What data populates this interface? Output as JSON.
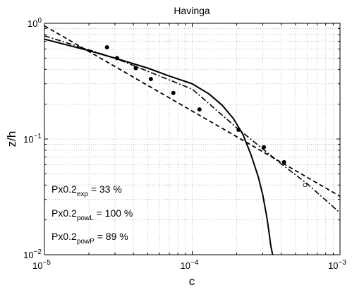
{
  "chart_data": {
    "type": "line",
    "title": "Havinga",
    "xlabel": "c",
    "ylabel": "z/h",
    "xscale": "log",
    "yscale": "log",
    "xlim": [
      1e-05,
      0.001
    ],
    "ylim": [
      0.01,
      1
    ],
    "grid": true,
    "x_ticks": [
      {
        "base": "10",
        "exp": "−5"
      },
      {
        "base": "10",
        "exp": "−4"
      },
      {
        "base": "10",
        "exp": "−3"
      }
    ],
    "y_ticks": [
      {
        "base": "10",
        "exp": "−2"
      },
      {
        "base": "10",
        "exp": "−1"
      },
      {
        "base": "10",
        "exp": "0"
      }
    ],
    "series": [
      {
        "style": "markers-filled",
        "x": [
          2.65e-05,
          3.1e-05,
          4.15e-05,
          5.25e-05,
          7.45e-05,
          0.000112,
          0.000206,
          0.000305,
          0.000418
        ],
        "y": [
          0.62,
          0.5,
          0.41,
          0.33,
          0.25,
          0.18,
          0.12,
          0.085,
          0.063
        ]
      },
      {
        "style": "marker-open",
        "x": [
          0.00058
        ],
        "y": [
          0.04
        ]
      },
      {
        "style": "solid",
        "x": [
          1e-05,
          2e-05,
          3e-05,
          5e-05,
          7e-05,
          0.0001,
          0.00013,
          0.00016,
          0.00019,
          0.00022,
          0.00025,
          0.00028,
          0.0003,
          0.00032,
          0.00033,
          0.00034,
          0.00035
        ],
        "y": [
          0.73,
          0.58,
          0.5,
          0.41,
          0.35,
          0.3,
          0.245,
          0.195,
          0.15,
          0.11,
          0.073,
          0.047,
          0.033,
          0.021,
          0.016,
          0.012,
          0.01
        ]
      },
      {
        "style": "dashed",
        "x": [
          1e-05,
          0.001
        ],
        "y": [
          0.95,
          0.032
        ]
      },
      {
        "style": "dash-dot",
        "x": [
          1e-05,
          3e-05,
          0.0001,
          0.0002,
          0.0004,
          0.0006,
          0.001
        ],
        "y": [
          0.78,
          0.5,
          0.27,
          0.125,
          0.061,
          0.041,
          0.023
        ]
      }
    ],
    "annotations": [
      {
        "main": "Px0.2",
        "sub": "exp",
        "rest": " = 33 %"
      },
      {
        "main": "Px0.2",
        "sub": "powL",
        "rest": " = 100 %"
      },
      {
        "main": "Px0.2",
        "sub": "powP",
        "rest": " = 89 %"
      }
    ]
  }
}
